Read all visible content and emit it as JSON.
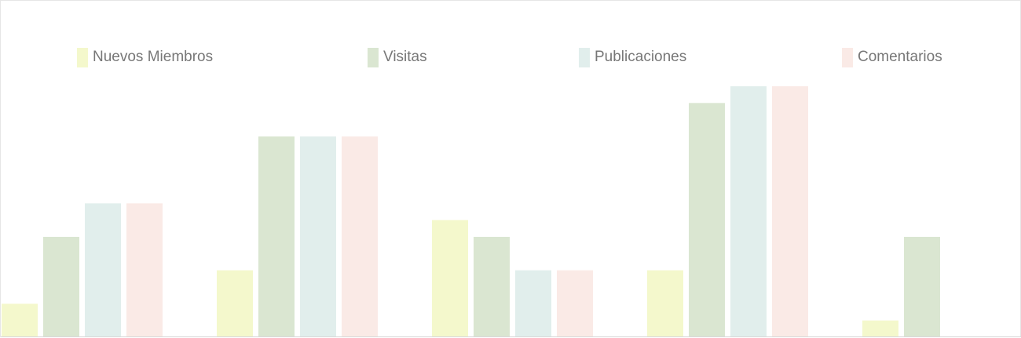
{
  "chart_data": {
    "type": "bar",
    "title": "",
    "xlabel": "",
    "ylabel": "",
    "categories": [
      "",
      "",
      "",
      "",
      ""
    ],
    "series": [
      {
        "name": "Nuevos Miembros",
        "color": "#f4f8cc",
        "values": [
          2,
          4,
          7,
          4,
          1
        ]
      },
      {
        "name": "Visitas",
        "color": "#dae6d1",
        "values": [
          6,
          12,
          6,
          14,
          6
        ]
      },
      {
        "name": "Publicaciones",
        "color": "#e1eeec",
        "values": [
          8,
          12,
          4,
          15,
          0
        ]
      },
      {
        "name": "Comentarios",
        "color": "#faeae6",
        "values": [
          8,
          12,
          4,
          15,
          0
        ]
      }
    ],
    "ylim": [
      0,
      15
    ],
    "grid": false,
    "legend_position": "top"
  }
}
